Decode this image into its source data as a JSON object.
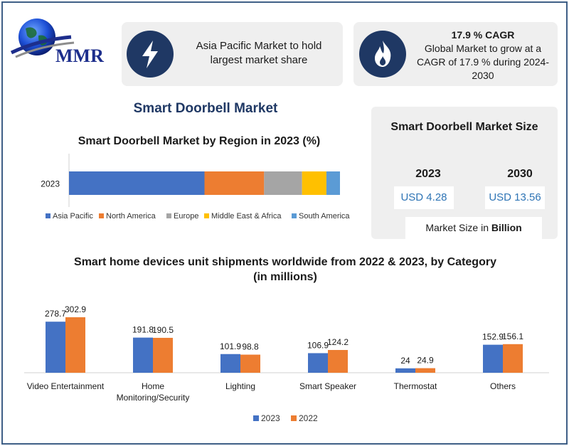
{
  "brand": {
    "logo_text": "MMR"
  },
  "cards": {
    "highlight": {
      "icon": "lightning-bolt-icon",
      "text": "Asia Pacific Market to hold largest market share"
    },
    "cagr": {
      "icon": "flame-icon",
      "heading": "17.9 % CAGR",
      "text": "Global Market to grow at a CAGR of 17.9 % during 2024-2030"
    }
  },
  "market_title": "Smart Doorbell Market",
  "market_size": {
    "title": "Smart Doorbell Market Size",
    "years": [
      "2023",
      "2030"
    ],
    "values": [
      "USD 4.28",
      "USD 13.56"
    ],
    "unit_prefix": "Market Size in ",
    "unit_bold": "Billion"
  },
  "colors": {
    "navy": "#1f3864",
    "asia_pacific": "#4472c4",
    "north_america": "#ed7d31",
    "europe": "#a5a5a5",
    "middle_east_africa": "#ffc000",
    "south_america": "#5b9bd5",
    "frame": "#3f5f86"
  },
  "chart_data": [
    {
      "type": "bar",
      "orientation": "horizontal",
      "stacked": true,
      "title": "Smart Doorbell Market by Region in 2023 (%)",
      "categories": [
        "2023"
      ],
      "series": [
        {
          "name": "Asia Pacific",
          "values": [
            50
          ],
          "color": "#4472c4"
        },
        {
          "name": "North America",
          "values": [
            22
          ],
          "color": "#ed7d31"
        },
        {
          "name": "Europe",
          "values": [
            14
          ],
          "color": "#a5a5a5"
        },
        {
          "name": "Middle East & Africa",
          "values": [
            9
          ],
          "color": "#ffc000"
        },
        {
          "name": "South America",
          "values": [
            5
          ],
          "color": "#5b9bd5"
        }
      ],
      "xlim": [
        0,
        100
      ],
      "legend": "bottom",
      "grid": false
    },
    {
      "type": "bar",
      "title": "Smart home devices unit shipments worldwide from 2022 & 2023, by Category (in millions)",
      "categories": [
        "Video Entertainment",
        "Home Monitoring/Security",
        "Lighting",
        "Smart Speaker",
        "Thermostat",
        "Others"
      ],
      "series": [
        {
          "name": "2023",
          "values": [
            278.7,
            191.8,
            101.9,
            106.9,
            24,
            152.9
          ],
          "color": "#4472c4"
        },
        {
          "name": "2022",
          "values": [
            302.9,
            190.5,
            98.8,
            124.2,
            24.9,
            156.1
          ],
          "color": "#ed7d31"
        }
      ],
      "value_labels": [
        [
          "278.7",
          "191.8",
          "101.9",
          "106.9",
          "24",
          "152.9"
        ],
        [
          "302.9",
          "190.5",
          "98.8",
          "124.2",
          "24.9",
          "156.1"
        ]
      ],
      "ylim": [
        0,
        330
      ],
      "legend": "bottom",
      "grid": false
    }
  ]
}
